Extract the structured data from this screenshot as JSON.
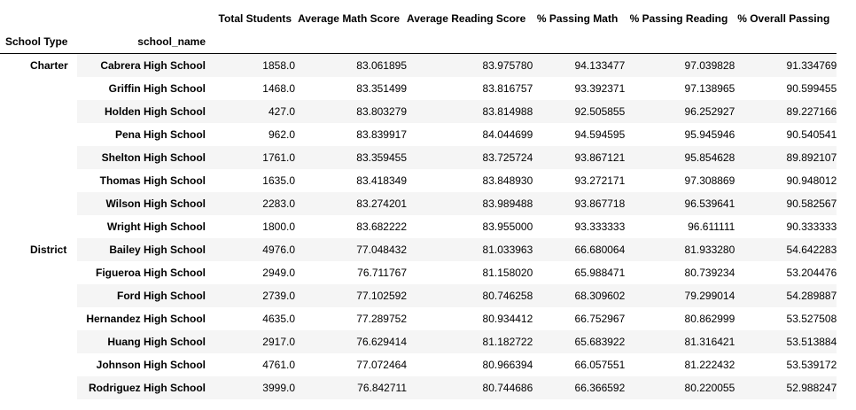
{
  "table": {
    "columns": [
      "Total Students",
      "Average Math Score",
      "Average Reading Score",
      "% Passing Math",
      "% Passing Reading",
      "% Overall Passing"
    ],
    "index_names": [
      "School Type",
      "school_name"
    ],
    "groups": [
      {
        "type": "Charter",
        "rows": [
          {
            "name": "Cabrera High School",
            "values": [
              "1858.0",
              "83.061895",
              "83.975780",
              "94.133477",
              "97.039828",
              "91.334769"
            ]
          },
          {
            "name": "Griffin High School",
            "values": [
              "1468.0",
              "83.351499",
              "83.816757",
              "93.392371",
              "97.138965",
              "90.599455"
            ]
          },
          {
            "name": "Holden High School",
            "values": [
              "427.0",
              "83.803279",
              "83.814988",
              "92.505855",
              "96.252927",
              "89.227166"
            ]
          },
          {
            "name": "Pena High School",
            "values": [
              "962.0",
              "83.839917",
              "84.044699",
              "94.594595",
              "95.945946",
              "90.540541"
            ]
          },
          {
            "name": "Shelton High School",
            "values": [
              "1761.0",
              "83.359455",
              "83.725724",
              "93.867121",
              "95.854628",
              "89.892107"
            ]
          },
          {
            "name": "Thomas High School",
            "values": [
              "1635.0",
              "83.418349",
              "83.848930",
              "93.272171",
              "97.308869",
              "90.948012"
            ]
          },
          {
            "name": "Wilson High School",
            "values": [
              "2283.0",
              "83.274201",
              "83.989488",
              "93.867718",
              "96.539641",
              "90.582567"
            ]
          },
          {
            "name": "Wright High School",
            "values": [
              "1800.0",
              "83.682222",
              "83.955000",
              "93.333333",
              "96.611111",
              "90.333333"
            ]
          }
        ]
      },
      {
        "type": "District",
        "rows": [
          {
            "name": "Bailey High School",
            "values": [
              "4976.0",
              "77.048432",
              "81.033963",
              "66.680064",
              "81.933280",
              "54.642283"
            ]
          },
          {
            "name": "Figueroa High School",
            "values": [
              "2949.0",
              "76.711767",
              "81.158020",
              "65.988471",
              "80.739234",
              "53.204476"
            ]
          },
          {
            "name": "Ford High School",
            "values": [
              "2739.0",
              "77.102592",
              "80.746258",
              "68.309602",
              "79.299014",
              "54.289887"
            ]
          },
          {
            "name": "Hernandez High School",
            "values": [
              "4635.0",
              "77.289752",
              "80.934412",
              "66.752967",
              "80.862999",
              "53.527508"
            ]
          },
          {
            "name": "Huang High School",
            "values": [
              "2917.0",
              "76.629414",
              "81.182722",
              "65.683922",
              "81.316421",
              "53.513884"
            ]
          },
          {
            "name": "Johnson High School",
            "values": [
              "4761.0",
              "77.072464",
              "80.966394",
              "66.057551",
              "81.222432",
              "53.539172"
            ]
          },
          {
            "name": "Rodriguez High School",
            "values": [
              "3999.0",
              "76.842711",
              "80.744686",
              "66.366592",
              "80.220055",
              "52.988247"
            ]
          }
        ]
      }
    ]
  }
}
